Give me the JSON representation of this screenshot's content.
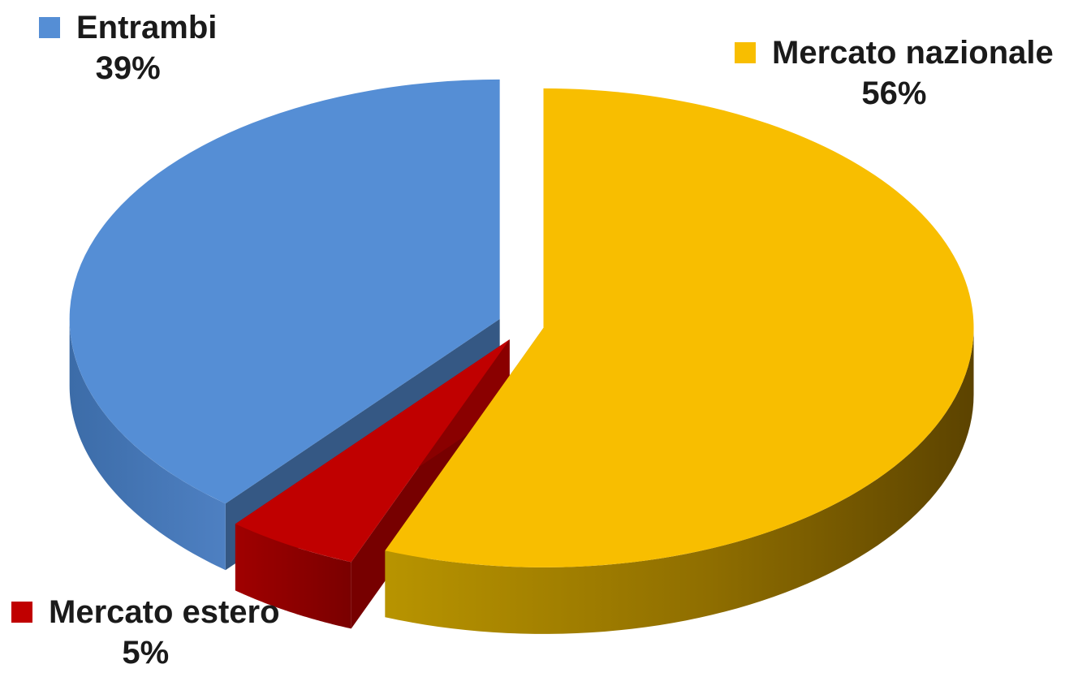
{
  "chart_data": {
    "type": "pie",
    "style": "3d-exploded",
    "legend": "none",
    "slices": [
      {
        "label": "Mercato nazionale",
        "value": 56,
        "value_label": "56%",
        "color": "#F8BE00"
      },
      {
        "label": "Mercato estero",
        "value": 5,
        "value_label": "5%",
        "color": "#C00000"
      },
      {
        "label": "Entrambi",
        "value": 39,
        "value_label": "39%",
        "color": "#558ED5"
      }
    ]
  }
}
